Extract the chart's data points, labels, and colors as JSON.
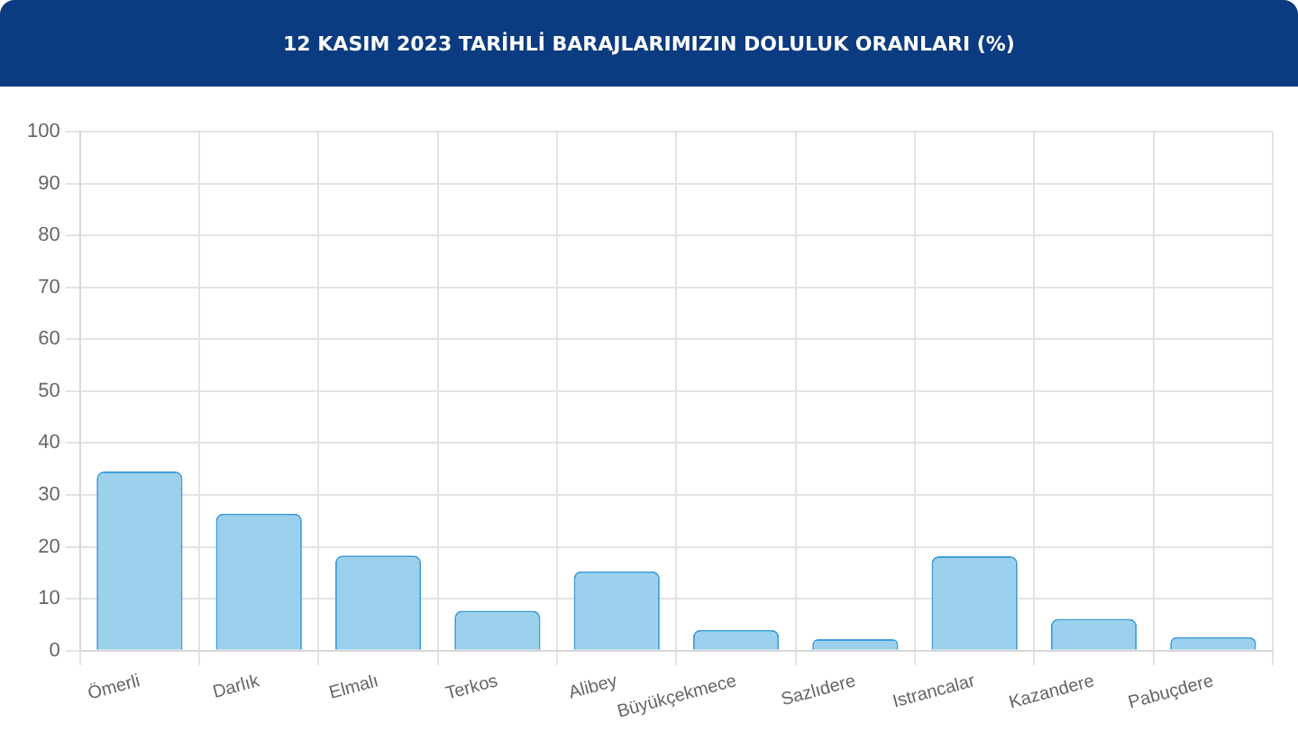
{
  "chart_data": {
    "type": "bar",
    "title": "12 KASIM 2023 TARİHLİ BARAJLARIMIZIN DOLULUK ORANLARI (%)",
    "categories": [
      "Ömerli",
      "Darlık",
      "Elmalı",
      "Terkos",
      "Alibey",
      "Büyükçekmece",
      "Sazlıdere",
      "Istrancalar",
      "Kazandere",
      "Pabuçdere"
    ],
    "values": [
      34.5,
      26.4,
      18.3,
      7.7,
      15.3,
      4.0,
      2.2,
      18.2,
      6.1,
      2.6
    ],
    "color": "#9bd1ec",
    "ylim": [
      0,
      100
    ],
    "yticks": [
      0,
      10,
      20,
      30,
      40,
      50,
      60,
      70,
      80,
      90,
      100
    ],
    "grid": true
  }
}
